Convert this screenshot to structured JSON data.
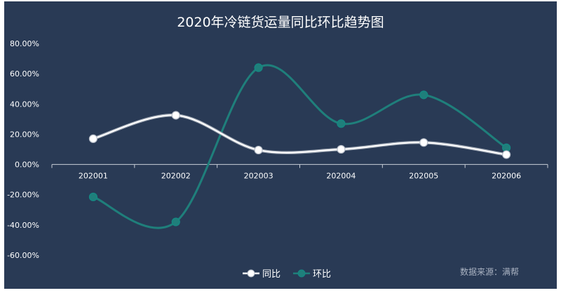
{
  "chart_data": {
    "type": "line",
    "title": "2020年冷链货运量同比环比趋势图",
    "categories": [
      "202001",
      "202002",
      "202003",
      "202004",
      "202005",
      "202006"
    ],
    "series": [
      {
        "name": "同比",
        "values": [
          17.0,
          32.5,
          9.5,
          10.0,
          14.5,
          6.5
        ],
        "color": "#ffffff"
      },
      {
        "name": "环比",
        "values": [
          -21.5,
          -38.0,
          64.0,
          27.0,
          46.0,
          11.0
        ],
        "color": "#1f7f7b"
      }
    ],
    "yticks": [
      "80.00%",
      "60.00%",
      "40.00%",
      "20.00%",
      "0.00%",
      "-20.00%",
      "-40.00%",
      "-60.00%"
    ],
    "ylim": [
      -60,
      80
    ],
    "smooth": true,
    "grid": false,
    "legend_position": "bottom-center",
    "background_color": "#293a55"
  },
  "footer": {
    "source": "数据来源：满帮"
  }
}
